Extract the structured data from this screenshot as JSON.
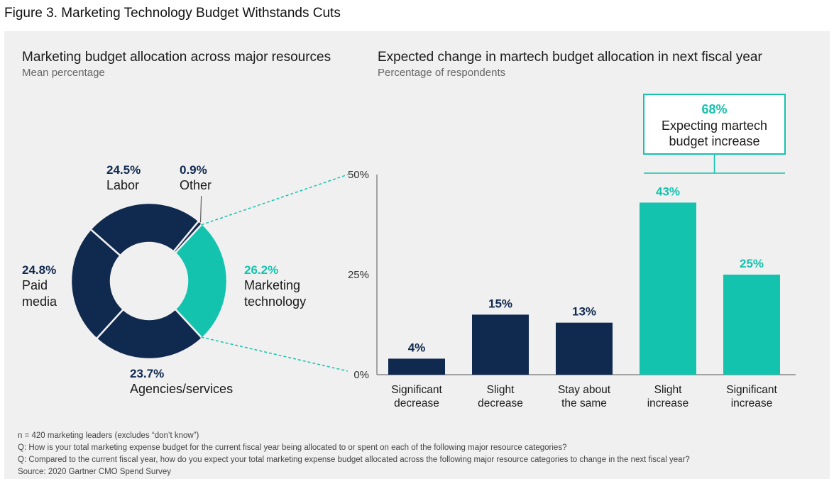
{
  "figure_title": "Figure 3. Marketing Technology Budget Withstands Cuts",
  "left_chart": {
    "title": "Marketing budget allocation across major resources",
    "subtitle": "Mean percentage"
  },
  "right_chart": {
    "title": "Expected change in martech budget allocation in next fiscal year",
    "subtitle": "Percentage of respondents",
    "callout_value": "68%",
    "callout_text_1": "Expecting martech",
    "callout_text_2": "budget increase"
  },
  "colors": {
    "navy": "#10294f",
    "teal": "#14c3ae",
    "panel": "#f0f0f0"
  },
  "chart_data": [
    {
      "type": "pie",
      "title": "Marketing budget allocation across major resources",
      "subtitle": "Mean percentage",
      "slices": [
        {
          "label": "Marketing technology",
          "label_lines": [
            "Marketing",
            "technology"
          ],
          "value": 26.2,
          "display": "26.2%",
          "color": "#14c3ae"
        },
        {
          "label": "Agencies/services",
          "label_lines": [
            "Agencies/services"
          ],
          "value": 23.7,
          "display": "23.7%",
          "color": "#10294f"
        },
        {
          "label": "Paid media",
          "label_lines": [
            "Paid",
            "media"
          ],
          "value": 24.8,
          "display": "24.8%",
          "color": "#10294f"
        },
        {
          "label": "Labor",
          "label_lines": [
            "Labor"
          ],
          "value": 24.5,
          "display": "24.5%",
          "color": "#10294f"
        },
        {
          "label": "Other",
          "label_lines": [
            "Other"
          ],
          "value": 0.9,
          "display": "0.9%",
          "color": "#10294f"
        }
      ]
    },
    {
      "type": "bar",
      "title": "Expected change in martech budget allocation in next fiscal year",
      "subtitle": "Percentage of respondents",
      "categories": [
        "Significant decrease",
        "Slight decrease",
        "Stay about the same",
        "Slight increase",
        "Significant increase"
      ],
      "category_lines": [
        [
          "Significant",
          "decrease"
        ],
        [
          "Slight",
          "decrease"
        ],
        [
          "Stay about",
          "the same"
        ],
        [
          "Slight",
          "increase"
        ],
        [
          "Significant",
          "increase"
        ]
      ],
      "values": [
        4,
        15,
        13,
        43,
        25
      ],
      "value_labels": [
        "4%",
        "15%",
        "13%",
        "43%",
        "25%"
      ],
      "bar_colors": [
        "#10294f",
        "#10294f",
        "#10294f",
        "#14c3ae",
        "#14c3ae"
      ],
      "ylim": [
        0,
        50
      ],
      "yticks": [
        0,
        25,
        50
      ],
      "ytick_labels": [
        "0%",
        "25%",
        "50%"
      ],
      "grid": false
    }
  ],
  "footer": {
    "n": "n = 420 marketing leaders (excludes “don’t know”)",
    "q1": "Q: How is your total marketing expense budget for the current fiscal year being allocated to or spent on each of the following major resource categories?",
    "q2": "Q: Compared to the current fiscal year, how do you expect your total marketing expense budget allocated across the following major resource categories to change in the next fiscal year?",
    "source": "Source: 2020 Gartner CMO Spend Survey"
  }
}
